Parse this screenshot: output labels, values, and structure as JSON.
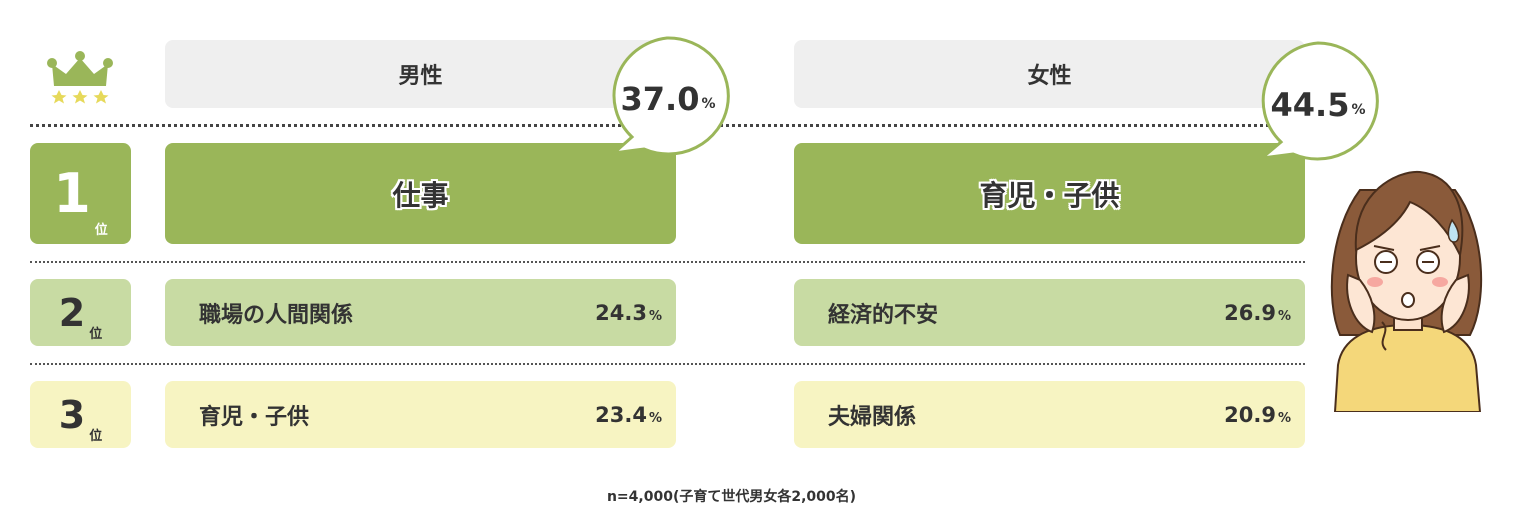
{
  "colors": {
    "rank1_fill": "#9ab659",
    "rank2_fill": "#c8dba3",
    "rank3_fill": "#f7f4c2",
    "header_fill": "#efefef",
    "bubble_stroke": "#9ab659"
  },
  "icons": {
    "crown": "crown-icon",
    "character": "worried-woman-illustration"
  },
  "headers": {
    "male": "男性",
    "female": "女性"
  },
  "ranks": [
    {
      "num": "1",
      "suffix": "位"
    },
    {
      "num": "2",
      "suffix": "位"
    },
    {
      "num": "3",
      "suffix": "位"
    }
  ],
  "male": {
    "top": {
      "label": "仕事",
      "value": "37.0",
      "unit": "%"
    },
    "second": {
      "label": "職場の人間関係",
      "value": "24.3",
      "unit": "%"
    },
    "third": {
      "label": "育児・子供",
      "value": "23.4",
      "unit": "%"
    }
  },
  "female": {
    "top": {
      "label": "育児・子供",
      "value": "44.5",
      "unit": "%"
    },
    "second": {
      "label": "経済的不安",
      "value": "26.9",
      "unit": "%"
    },
    "third": {
      "label": "夫婦関係",
      "value": "20.9",
      "unit": "%"
    }
  },
  "footnote": "n=4,000(子育て世代男女各2,000名)"
}
